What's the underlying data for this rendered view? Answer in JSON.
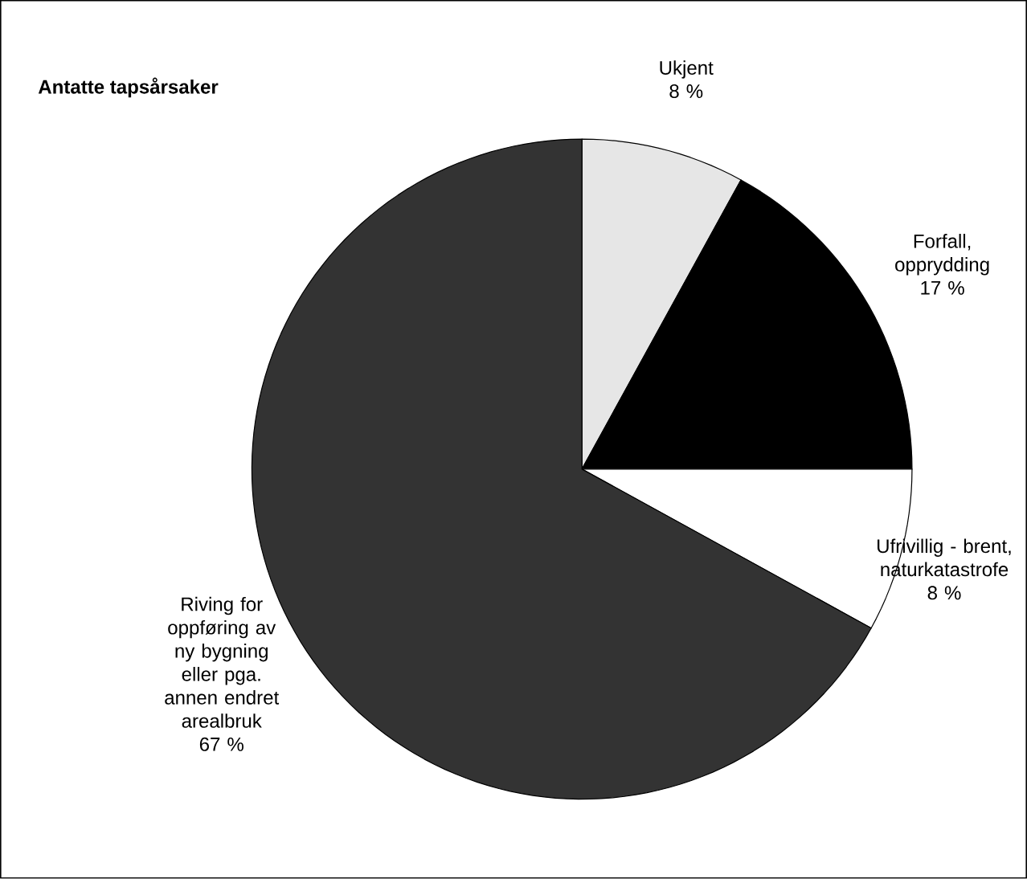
{
  "chart_data": {
    "type": "pie",
    "title": "Antatte tapsårsaker",
    "categories": [
      "Ukjent",
      "Forfall, opprydding",
      "Ufrivillig - brent, naturkatastrofe",
      "Riving for oppføring av ny bygning eller pga. annen endret arealbruk"
    ],
    "values": [
      8,
      17,
      8,
      67
    ],
    "colors": [
      "#e6e6e6",
      "#000000",
      "#ffffff",
      "#333333"
    ],
    "value_labels": [
      "8 %",
      "17 %",
      "8 %",
      "67 %"
    ]
  }
}
